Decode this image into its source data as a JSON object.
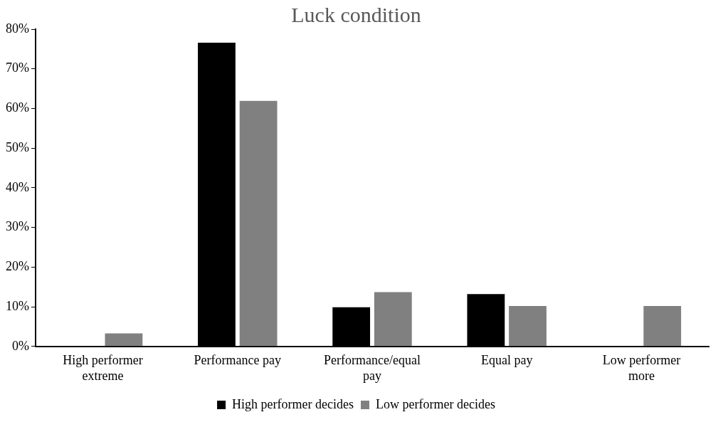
{
  "chart_data": {
    "type": "bar",
    "title": "Luck condition",
    "categories": [
      "High performer extreme",
      "Performance pay",
      "Performance/equal pay",
      "Equal pay",
      "Low performer more"
    ],
    "series": [
      {
        "name": "High performer decides",
        "color": "#000000",
        "values": [
          0,
          76.6,
          9.9,
          13.2,
          0
        ]
      },
      {
        "name": "Low performer decides",
        "color": "#808080",
        "values": [
          3.3,
          61.9,
          13.7,
          10.2,
          10.2
        ]
      }
    ],
    "ylim": [
      0,
      80
    ],
    "yticks": [
      {
        "value": 0,
        "label": "0%"
      },
      {
        "value": 10,
        "label": "10%"
      },
      {
        "value": 20,
        "label": "20%"
      },
      {
        "value": 30,
        "label": "30%"
      },
      {
        "value": 40,
        "label": "40%"
      },
      {
        "value": 50,
        "label": "50%"
      },
      {
        "value": 60,
        "label": "60%"
      },
      {
        "value": 70,
        "label": "70%"
      },
      {
        "value": 80,
        "label": "80%"
      }
    ],
    "grid": false,
    "legend": "bottom"
  }
}
